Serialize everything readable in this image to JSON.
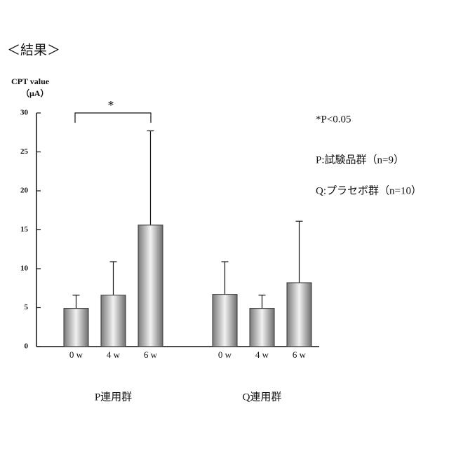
{
  "chart_data": {
    "type": "bar",
    "title": "＜結果＞",
    "y_label": "CPT value",
    "y_unit": "（μA）",
    "categories": [
      "0 w",
      "4 w",
      "6 w"
    ],
    "series": [
      {
        "name": "P連用群",
        "color": "#8c8c8c",
        "values": [
          4.9,
          6.6,
          15.6
        ],
        "errors": [
          1.7,
          4.3,
          12.1
        ]
      },
      {
        "name": "Q連用群",
        "color": "#8c8c8c",
        "values": [
          6.7,
          4.9,
          8.2
        ],
        "errors": [
          4.2,
          1.7,
          7.9
        ]
      }
    ],
    "significance": "*",
    "notes": [
      "*P<0.05",
      "P:試験品群（n=9）",
      "Q:プラセボ群（n=10）"
    ],
    "ylim": [
      0,
      30
    ],
    "yticks": [
      0,
      5,
      10,
      15,
      20,
      25,
      30
    ]
  }
}
